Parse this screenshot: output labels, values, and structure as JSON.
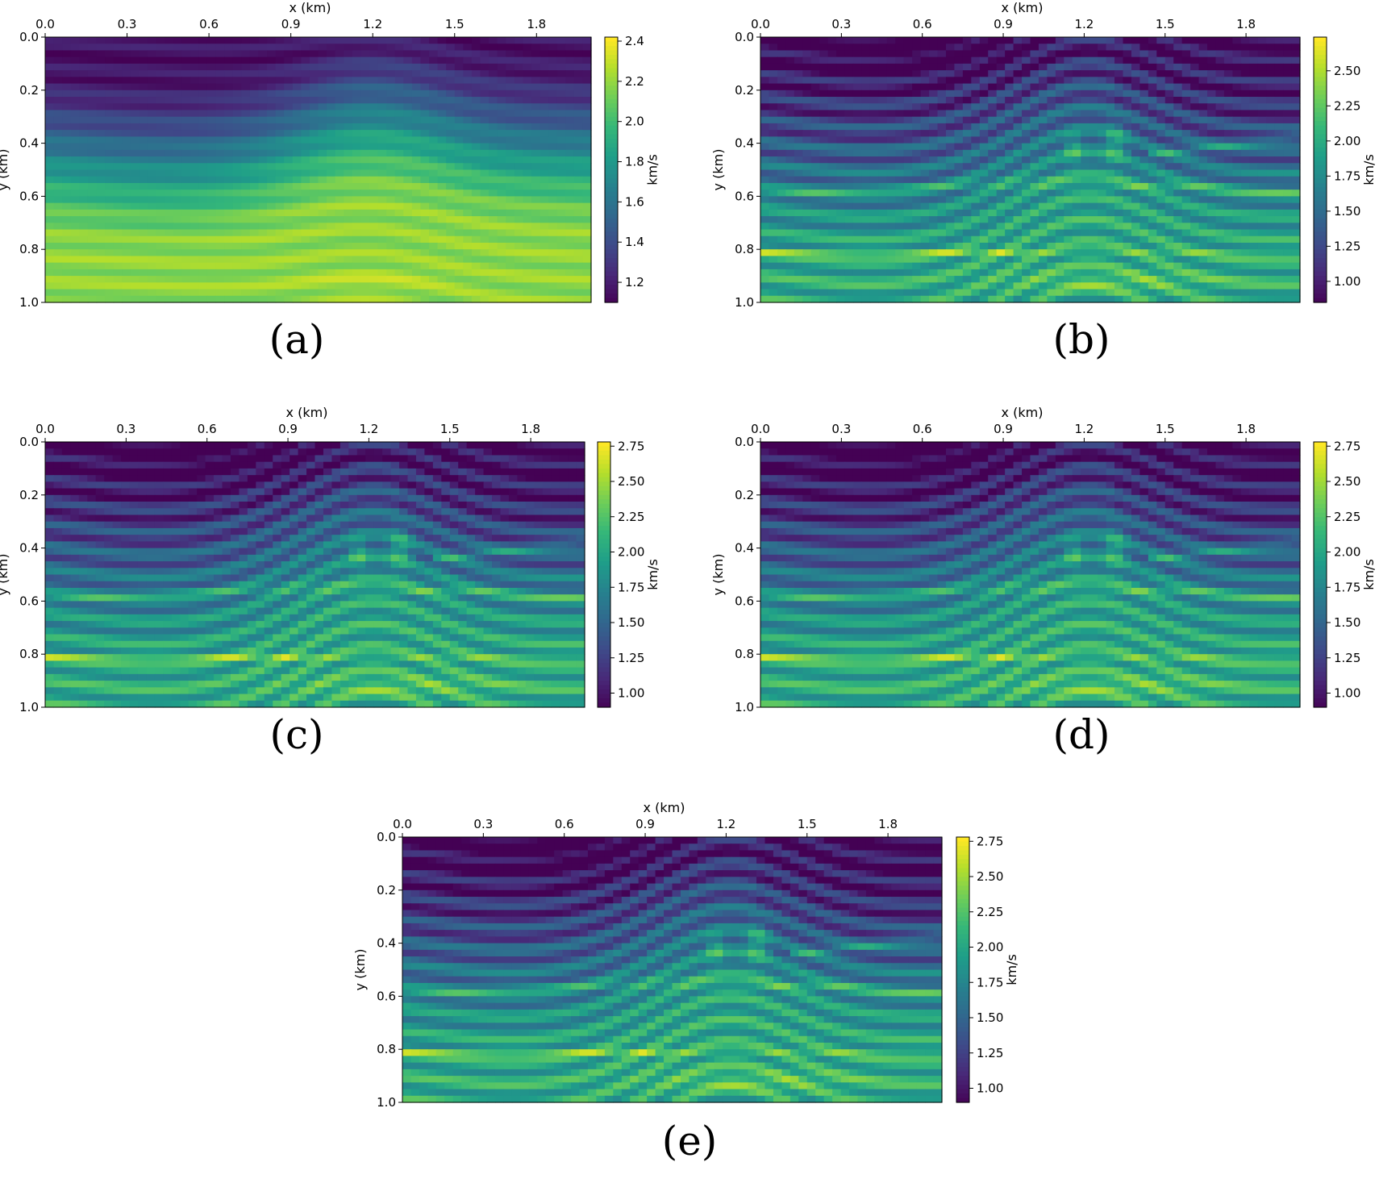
{
  "chart_data": [
    {
      "panel": "a",
      "type": "heatmap",
      "caption": "(a)",
      "xlabel": "x (km)",
      "ylabel": "y (km)",
      "colorbar_label": "km/s",
      "xlim": [
        0.0,
        2.0
      ],
      "ylim": [
        1.0,
        0.0
      ],
      "xticks": [
        "0.0",
        "0.3",
        "0.6",
        "0.9",
        "1.2",
        "1.5",
        "1.8"
      ],
      "yticks": [
        "0.0",
        "0.2",
        "0.4",
        "0.6",
        "0.8",
        "1.0"
      ],
      "colorbar_range": [
        1.1,
        2.42
      ],
      "colorbar_ticks": [
        "1.2",
        "1.4",
        "1.6",
        "1.8",
        "2.0",
        "2.2",
        "2.4"
      ],
      "colormap": "viridis",
      "style": "smooth"
    },
    {
      "panel": "b",
      "type": "heatmap",
      "caption": "(b)",
      "xlabel": "x (km)",
      "ylabel": "y (km)",
      "colorbar_label": "km/s",
      "xlim": [
        0.0,
        2.0
      ],
      "ylim": [
        1.0,
        0.0
      ],
      "xticks": [
        "0.0",
        "0.3",
        "0.6",
        "0.9",
        "1.2",
        "1.5",
        "1.8"
      ],
      "yticks": [
        "0.0",
        "0.2",
        "0.4",
        "0.6",
        "0.8",
        "1.0"
      ],
      "colorbar_range": [
        0.85,
        2.74
      ],
      "colorbar_ticks": [
        "1.00",
        "1.25",
        "1.50",
        "1.75",
        "2.00",
        "2.25",
        "2.50"
      ],
      "colormap": "viridis",
      "style": "sharp"
    },
    {
      "panel": "c",
      "type": "heatmap",
      "caption": "(c)",
      "xlabel": "x (km)",
      "ylabel": "y (km)",
      "colorbar_label": "km/s",
      "xlim": [
        0.0,
        2.0
      ],
      "ylim": [
        1.0,
        0.0
      ],
      "xticks": [
        "0.0",
        "0.3",
        "0.6",
        "0.9",
        "1.2",
        "1.5",
        "1.8"
      ],
      "yticks": [
        "0.0",
        "0.2",
        "0.4",
        "0.6",
        "0.8",
        "1.0"
      ],
      "colorbar_range": [
        0.9,
        2.78
      ],
      "colorbar_ticks": [
        "1.00",
        "1.25",
        "1.50",
        "1.75",
        "2.00",
        "2.25",
        "2.50",
        "2.75"
      ],
      "colormap": "viridis",
      "style": "sharp"
    },
    {
      "panel": "d",
      "type": "heatmap",
      "caption": "(d)",
      "xlabel": "x (km)",
      "ylabel": "y (km)",
      "colorbar_label": "km/s",
      "xlim": [
        0.0,
        2.0
      ],
      "ylim": [
        1.0,
        0.0
      ],
      "xticks": [
        "0.0",
        "0.3",
        "0.6",
        "0.9",
        "1.2",
        "1.5",
        "1.8"
      ],
      "yticks": [
        "0.0",
        "0.2",
        "0.4",
        "0.6",
        "0.8",
        "1.0"
      ],
      "colorbar_range": [
        0.9,
        2.78
      ],
      "colorbar_ticks": [
        "1.00",
        "1.25",
        "1.50",
        "1.75",
        "2.00",
        "2.25",
        "2.50",
        "2.75"
      ],
      "colormap": "viridis",
      "style": "sharp"
    },
    {
      "panel": "e",
      "type": "heatmap",
      "caption": "(e)",
      "xlabel": "x (km)",
      "ylabel": "y (km)",
      "colorbar_label": "km/s",
      "xlim": [
        0.0,
        2.0
      ],
      "ylim": [
        1.0,
        0.0
      ],
      "xticks": [
        "0.0",
        "0.3",
        "0.6",
        "0.9",
        "1.2",
        "1.5",
        "1.8"
      ],
      "yticks": [
        "0.0",
        "0.2",
        "0.4",
        "0.6",
        "0.8",
        "1.0"
      ],
      "colorbar_range": [
        0.9,
        2.78
      ],
      "colorbar_ticks": [
        "1.00",
        "1.25",
        "1.50",
        "1.75",
        "2.00",
        "2.25",
        "2.50",
        "2.75"
      ],
      "colormap": "viridis",
      "style": "sharp"
    }
  ]
}
